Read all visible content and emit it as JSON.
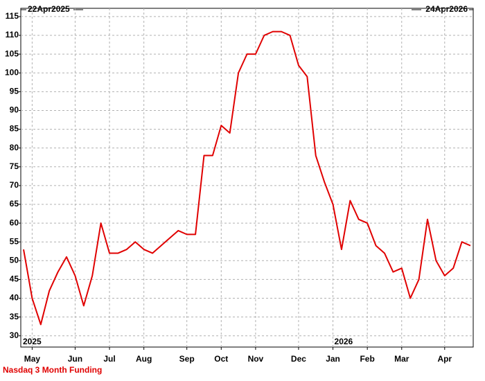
{
  "chart_data": {
    "type": "line",
    "title": "Nasdaq 3 Month Funding",
    "start_label": "22Apr2025",
    "end_label": "24Apr2026",
    "year_labels": [
      "2025",
      "2026"
    ],
    "categories": [
      null,
      "May",
      null,
      null,
      null,
      null,
      "Jun",
      null,
      null,
      null,
      "Jul",
      null,
      null,
      null,
      "Aug",
      null,
      null,
      null,
      null,
      "Sep",
      null,
      null,
      null,
      "Oct",
      null,
      null,
      null,
      "Nov",
      null,
      null,
      null,
      null,
      "Dec",
      null,
      null,
      null,
      "Jan",
      null,
      null,
      null,
      "Feb",
      null,
      null,
      null,
      "Mar",
      null,
      null,
      null,
      null,
      "Apr",
      null,
      null,
      null
    ],
    "series": [
      {
        "name": "Nasdaq 3 Month Funding",
        "color": "#e00000",
        "values": [
          53,
          40,
          33,
          42,
          47,
          51,
          46,
          38,
          46,
          60,
          52,
          52,
          53,
          55,
          53,
          52,
          54,
          56,
          58,
          57,
          57,
          78,
          78,
          86,
          84,
          100,
          105,
          105,
          110,
          111,
          111,
          110,
          102,
          99,
          78,
          71,
          65,
          53,
          66,
          61,
          60,
          54,
          52,
          47,
          48,
          40,
          45,
          61,
          50,
          46,
          48,
          55,
          54
        ]
      }
    ],
    "ylim": [
      27,
      117.2
    ],
    "yticks": [
      30,
      35,
      40,
      45,
      50,
      55,
      60,
      65,
      70,
      75,
      80,
      85,
      90,
      95,
      100,
      105,
      110,
      115
    ],
    "grid": true
  }
}
